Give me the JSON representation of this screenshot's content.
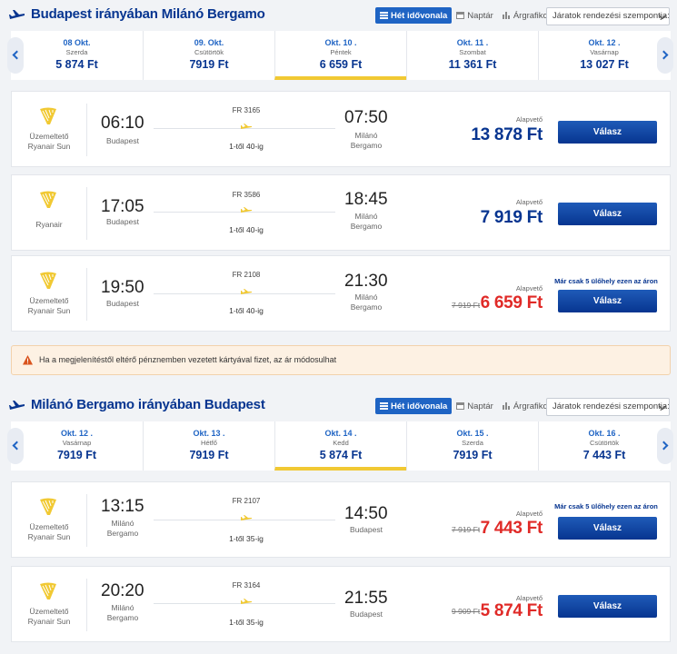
{
  "outbound": {
    "title": "Budapest irányában Milánó Bergamo",
    "view_toggle": [
      "Hét idővonala",
      "Naptár",
      "Árgrafikon"
    ],
    "sort_placeholder": "Járatok rendezési szempontja:",
    "dates": [
      {
        "date": "08  Okt.",
        "weekday": "Szerda",
        "price": "5 874 Ft"
      },
      {
        "date": "09.  Okt.",
        "weekday": "Csütörtök",
        "price": "7919 Ft"
      },
      {
        "date": "Okt. 10 .",
        "weekday": "Péntek",
        "price": "6 659 Ft"
      },
      {
        "date": "Okt. 11 .",
        "weekday": "Szombat",
        "price": "11 361 Ft"
      },
      {
        "date": "Okt. 12 .",
        "weekday": "Vasárnap",
        "price": "13 027 Ft"
      }
    ],
    "flights": [
      {
        "operator": "Üzemeltető\nRyanair Sun",
        "dep_time": "06:10",
        "dep_place": "Budapest",
        "flight_no": "FR 3165",
        "seats": "1-től 40-ig",
        "arr_time": "07:50",
        "arr_place": "Milánó\nBergamo",
        "fare_label": "Alapvető",
        "old_price": "",
        "price": "13 878 Ft",
        "notice": "",
        "button": "Válasz"
      },
      {
        "operator": "Ryanair",
        "dep_time": "17:05",
        "dep_place": "Budapest",
        "flight_no": "FR 3586",
        "seats": "1-től 40-ig",
        "arr_time": "18:45",
        "arr_place": "Milánó\nBergamo",
        "fare_label": "Alapvető",
        "old_price": "",
        "price": "7 919 Ft",
        "notice": "",
        "button": "Válasz"
      },
      {
        "operator": "Üzemeltető\nRyanair Sun",
        "dep_time": "19:50",
        "dep_place": "Budapest",
        "flight_no": "FR 2108",
        "seats": "1-től 40-ig",
        "arr_time": "21:30",
        "arr_place": "Milánó\nBergamo",
        "fare_label": "Alapvető",
        "old_price": "7 919 Ft",
        "price": "6 659 Ft",
        "notice": "Már csak 5 ülőhely ezen az áron",
        "button": "Válasz"
      }
    ]
  },
  "warning": "Ha a megjelenítéstől eltérő pénznemben vezetett kártyával fizet, az ár módosulhat",
  "inbound": {
    "title": "Milánó Bergamo irányában Budapest",
    "view_toggle": [
      "Hét idővonala",
      "Naptár",
      "Árgrafikon"
    ],
    "sort_placeholder": "Járatok rendezési szempontja:",
    "dates": [
      {
        "date": "Okt. 12 .",
        "weekday": "Vasárnap",
        "price": "7919 Ft"
      },
      {
        "date": "Okt. 13 .",
        "weekday": "Hétfő",
        "price": "7919 Ft"
      },
      {
        "date": "Okt. 14 .",
        "weekday": "Kedd",
        "price": "5 874 Ft"
      },
      {
        "date": "Okt. 15 .",
        "weekday": "Szerda",
        "price": "7919 Ft"
      },
      {
        "date": "Okt. 16 .",
        "weekday": "Csütörtök",
        "price": "7 443 Ft"
      }
    ],
    "flights": [
      {
        "operator": "Üzemeltető\nRyanair Sun",
        "dep_time": "13:15",
        "dep_place": "Milánó\nBergamo",
        "flight_no": "FR 2107",
        "seats": "1-től 35-ig",
        "arr_time": "14:50",
        "arr_place": "Budapest",
        "fare_label": "Alapvető",
        "old_price": "7 919 Ft",
        "price": "7 443 Ft",
        "notice": "Már csak 5 ülőhely ezen az áron",
        "button": "Válasz"
      },
      {
        "operator": "Üzemeltető\nRyanair Sun",
        "dep_time": "20:20",
        "dep_place": "Milánó\nBergamo",
        "flight_no": "FR 3164",
        "seats": "1-től 35-ig",
        "arr_time": "21:55",
        "arr_place": "Budapest",
        "fare_label": "Alapvető",
        "old_price": "9 909 Ft",
        "price": "5 874 Ft",
        "notice": "",
        "button": "Válasz"
      }
    ]
  },
  "colors": {
    "brand_blue": "#073590",
    "accent_yellow": "#f1c933",
    "sale_red": "#e02a27"
  }
}
